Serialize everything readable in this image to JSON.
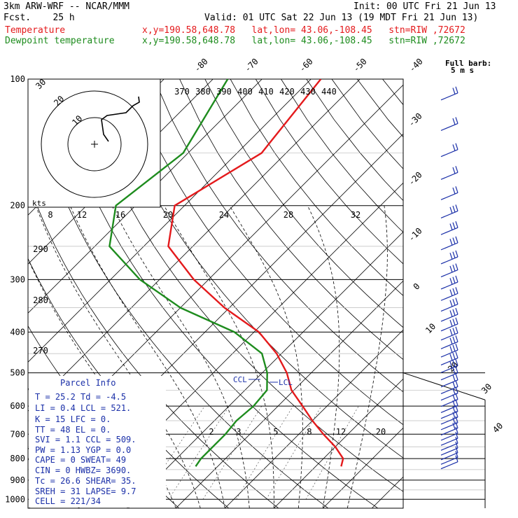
{
  "header": {
    "title": "3km ARW-WRF -- NCAR/MMM",
    "init": "Init: 00 UTC Fri 21 Jun 13",
    "fcst": "Fcst.    25 h",
    "valid": "Valid: 01 UTC Sat 22 Jun 13 (19 MDT Fri 21 Jun 13)",
    "temp_name": "Temperature",
    "dew_name": "Dewpoint temperature",
    "location": "x,y=190.58,648.78   lat,lon= 43.06,-108.45   stn=RIW ,72672"
  },
  "chart_data": {
    "type": "line",
    "title": "",
    "xlabel": "",
    "ylabel": "",
    "pressure_ticks": [
      "100",
      "200",
      "300",
      "400",
      "500",
      "600",
      "700",
      "800",
      "900",
      "1000"
    ],
    "temp_ticks": [
      "-80",
      "-70",
      "-60",
      "-50",
      "-40",
      "-30",
      "-20",
      "-10",
      "0",
      "10",
      "20",
      "30",
      "40"
    ],
    "theta_labels": [
      "370",
      "380",
      "390",
      "400",
      "410",
      "420",
      "430",
      "440"
    ],
    "theta_left_labels": [
      "290",
      "280",
      "270"
    ],
    "mixing_ratio_labels": [
      "2",
      "3",
      "5",
      "8",
      "12",
      "20"
    ],
    "series": [
      {
        "name": "Temperature",
        "color": "#e41a1c",
        "points": [
          [
            100,
            -58
          ],
          [
            150,
            -55
          ],
          [
            200,
            -62
          ],
          [
            250,
            -55
          ],
          [
            300,
            -43
          ],
          [
            350,
            -31
          ],
          [
            400,
            -19
          ],
          [
            450,
            -11
          ],
          [
            500,
            -5
          ],
          [
            550,
            -0.5
          ],
          [
            600,
            5
          ],
          [
            650,
            10
          ],
          [
            700,
            15
          ],
          [
            750,
            20
          ],
          [
            800,
            24
          ],
          [
            835,
            25.2
          ]
        ]
      },
      {
        "name": "Dewpoint temperature",
        "color": "#1e8c1e",
        "points": [
          [
            100,
            -77
          ],
          [
            150,
            -71
          ],
          [
            200,
            -74
          ],
          [
            250,
            -67
          ],
          [
            300,
            -54
          ],
          [
            350,
            -40
          ],
          [
            400,
            -24
          ],
          [
            450,
            -14
          ],
          [
            500,
            -9
          ],
          [
            550,
            -5.5
          ],
          [
            600,
            -5
          ],
          [
            650,
            -5.5
          ],
          [
            700,
            -5
          ],
          [
            750,
            -5
          ],
          [
            800,
            -5
          ],
          [
            835,
            -4.5
          ]
        ]
      }
    ],
    "ylim": [
      100,
      1000
    ]
  },
  "hodograph": {
    "kts_label": "kts",
    "ring_labels": [
      "10",
      "20",
      "30"
    ],
    "speed_labels": [
      "8",
      "12",
      "16",
      "20",
      "24",
      "28",
      "32"
    ]
  },
  "barb_legend": {
    "line1": "Full barb:",
    "line2": "5 m s"
  },
  "parcel_info": {
    "title": "Parcel Info",
    "rows": [
      "T   =   25.2  Td =  -4.5",
      "LI  =    0.4  LCL =  521.",
      "K   =     15  LFC =    0.",
      "TT  =     48  EL  =    0.",
      "SVI =    1.1  CCL =  509.",
      "PW  =   1.13  YGP =   0.0",
      "CAPE =     0  SWEAT=   49",
      "CIN  =     0  HWBZ= 3690.",
      "Tc  =   26.6  SHEAR=  35.",
      "SREH =    31  LAPSE=  9.7",
      "CELL = 221/34"
    ]
  },
  "annotations": {
    "ccl": "CCL",
    "lcl": "LCL"
  },
  "colors": {
    "temperature": "#e41a1c",
    "dewpoint": "#1e8c1e",
    "info": "#1a2fa8",
    "barbs": "#1a2fa8"
  }
}
